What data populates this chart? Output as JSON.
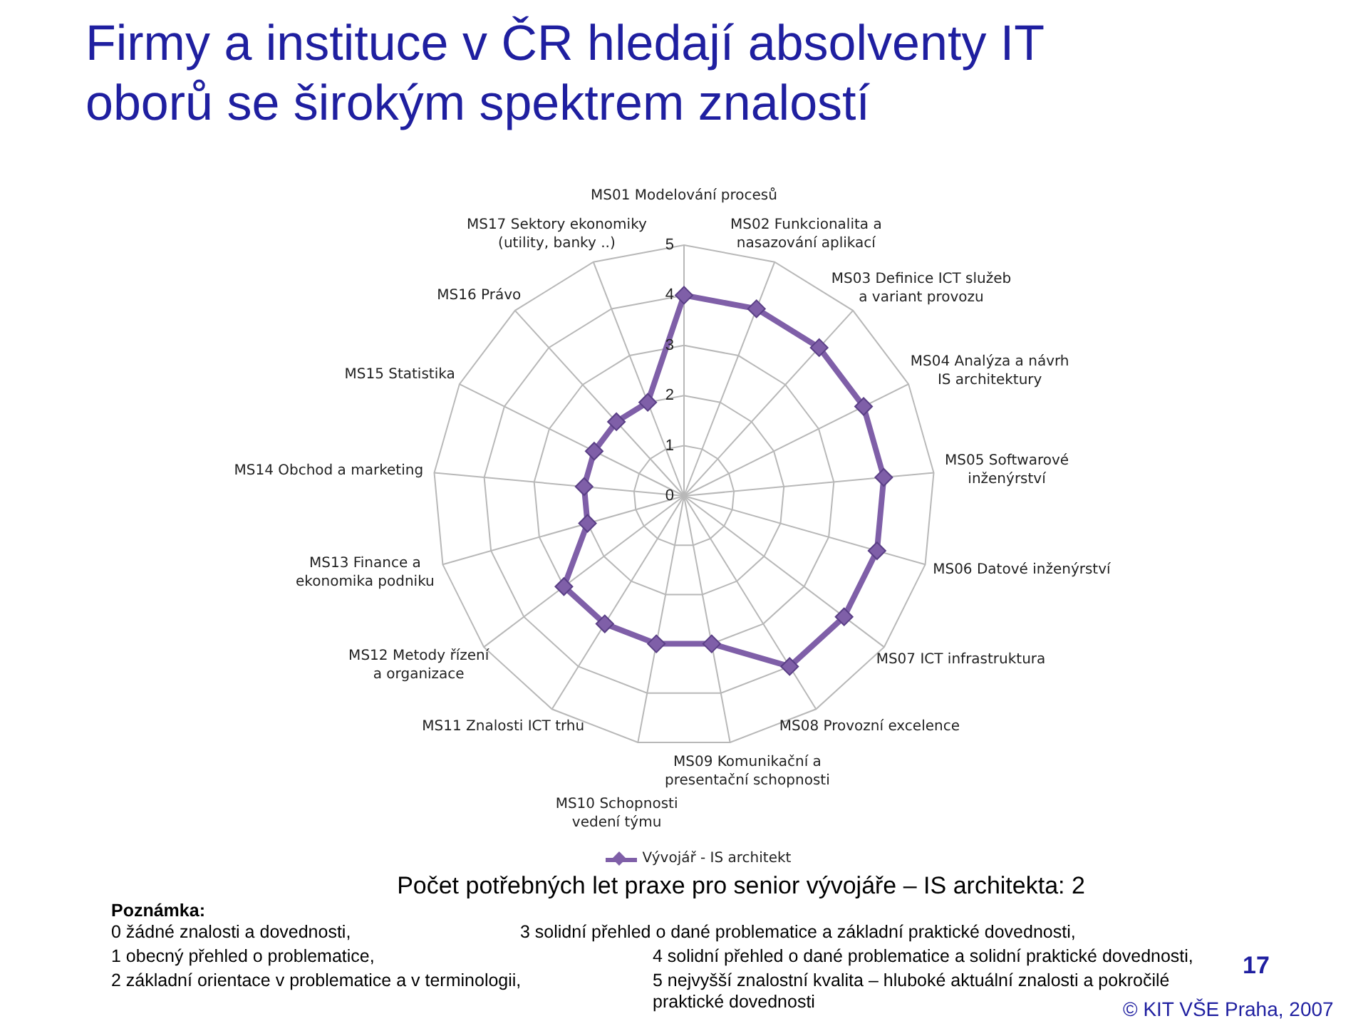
{
  "chart_data": {
    "type": "radar",
    "title": "Firmy a instituce v ČR hledají absolventy IT oborů se širokým spektrem znalostí",
    "subtitle": "Počet potřebných let praxe pro senior vývojáře – IS architekta: 2",
    "categories": [
      "MS01 Modelování procesů",
      "MS02 Funkcionalita a nasazování aplikací",
      "MS03 Definice ICT služeb a variant provozu",
      "MS04 Analýza a návrh IS architektury",
      "MS05 Softwarové inženýrství",
      "MS06 Datové inženýrství",
      "MS07 ICT infrastruktura",
      "MS08 Provozní excelence",
      "MS09 Komunikační a presentační schopnosti",
      "MS10 Schopnosti vedení týmu",
      "MS11 Znalosti ICT trhu",
      "MS12 Metody řízení a organizace",
      "MS13 Finance a ekonomika podniku",
      "MS14 Obchod a marketing",
      "MS15 Statistika",
      "MS16 Právo",
      "MS17 Sektory ekonomiky (utility, banky ..)"
    ],
    "series": [
      {
        "name": "Vývojář - IS architekt",
        "color": "#7f5fa8",
        "values": [
          4,
          4,
          4,
          4,
          4,
          4,
          4,
          4,
          3,
          3,
          3,
          3,
          2,
          2,
          2,
          2,
          2
        ]
      }
    ],
    "ylim": [
      0,
      5
    ],
    "yticks": [
      0,
      1,
      2,
      3,
      4,
      5
    ],
    "grid": true,
    "legend": "bottom",
    "marker": "diamond",
    "line_style": "solid",
    "annotations": [
      "Poznámka:",
      "0 žádné znalosti a dovednosti,",
      "1 obecný přehled o problematice,",
      "2 základní orientace v problematice a v terminologii,",
      "3 solidní přehled o dané problematice a základní praktické dovednosti,",
      "4 solidní přehled o dané problematice a solidní praktické dovednosti,",
      "5 nejvyšší znalostní kvalita – hluboké aktuální znalosti a pokročilé praktické dovednosti",
      "17",
      "© KIT VŠE Praha, 2007"
    ]
  }
}
